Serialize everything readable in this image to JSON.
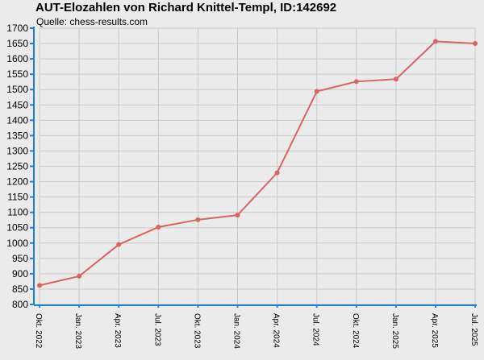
{
  "chart_data": {
    "type": "line",
    "title": "AUT-Elozahlen von Richard Knittel-Templ, ID:142692",
    "subtitle": "Quelle: chess-results.com",
    "xlabel": "",
    "ylabel": "",
    "ylim": [
      800,
      1700
    ],
    "y_ticks": [
      800,
      850,
      900,
      950,
      1000,
      1050,
      1100,
      1150,
      1200,
      1250,
      1300,
      1350,
      1400,
      1450,
      1500,
      1550,
      1600,
      1650,
      1700
    ],
    "grid": true,
    "legend": "none",
    "categories": [
      "Okt. 2022",
      "Jan. 2023",
      "Apr. 2023",
      "Jul. 2023",
      "Okt. 2023",
      "Jan. 2024",
      "Apr. 2024",
      "Jul. 2024",
      "Okt. 2024",
      "Jan. 2025",
      "Apr. 2025",
      "Jul. 2025"
    ],
    "series": [
      {
        "values": [
          862,
          892,
          995,
          1052,
          1076,
          1091,
          1229,
          1494,
          1526,
          1534,
          1657,
          1650
        ]
      }
    ]
  },
  "colors": {
    "background": "#ebebeb",
    "grid": "#c9c9c9",
    "axis": "#1e7fd6",
    "line": "#d96464"
  }
}
